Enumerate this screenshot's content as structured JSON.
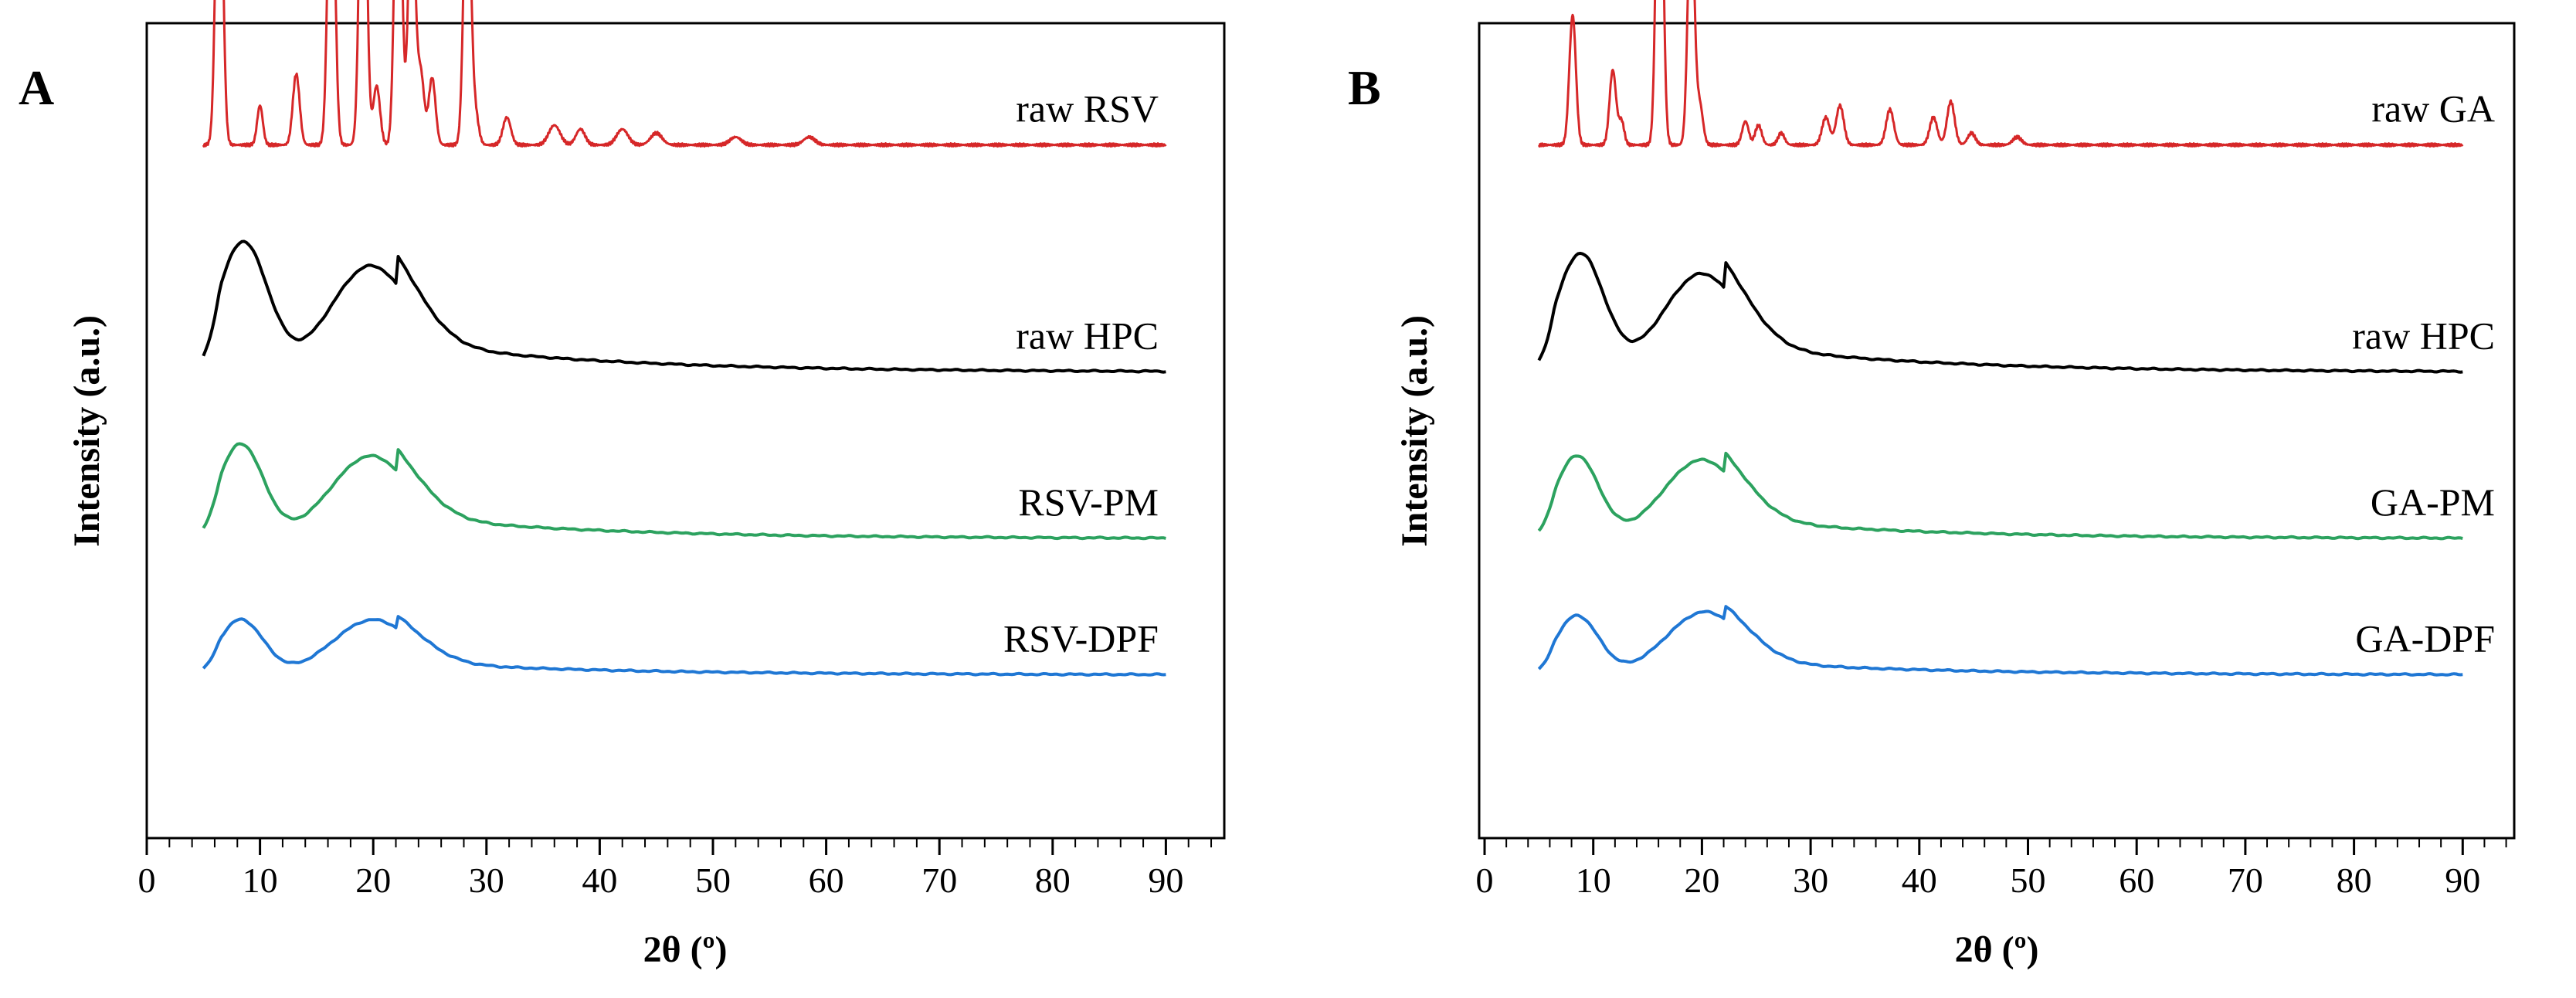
{
  "chart_data": [
    {
      "type": "line",
      "panel_label": "A",
      "xlabel": "2θ (º)",
      "ylabel": "Intensity (a.u.)",
      "xlim": [
        0,
        95
      ],
      "xticks": [
        "0",
        "10",
        "20",
        "30",
        "40",
        "50",
        "60",
        "70",
        "80",
        "90"
      ],
      "y_ticks_shown": false,
      "grid": false,
      "series": [
        {
          "name": "raw RSV",
          "color": "#d62728",
          "baseline": 0.12,
          "end": 0.12,
          "broad": [],
          "peaks": [
            [
              6.4,
              0.92,
              0.3
            ],
            [
              10.0,
              0.1,
              0.25
            ],
            [
              13.2,
              0.18,
              0.3
            ],
            [
              16.3,
              0.88,
              0.3
            ],
            [
              19.1,
              1.0,
              0.3
            ],
            [
              20.3,
              0.15,
              0.3
            ],
            [
              22.2,
              0.92,
              0.3
            ],
            [
              23.4,
              0.67,
              0.3
            ],
            [
              24.2,
              0.18,
              0.3
            ],
            [
              25.2,
              0.17,
              0.3
            ],
            [
              28.3,
              0.77,
              0.3
            ],
            [
              29.0,
              0.08,
              0.3
            ],
            [
              31.8,
              0.07,
              0.35
            ],
            [
              36.0,
              0.05,
              0.5
            ],
            [
              38.3,
              0.04,
              0.4
            ],
            [
              42.0,
              0.04,
              0.5
            ],
            [
              45.0,
              0.03,
              0.5
            ],
            [
              52.0,
              0.02,
              0.5
            ],
            [
              58.5,
              0.02,
              0.5
            ]
          ]
        },
        {
          "name": "raw HPC",
          "color": "#000000",
          "baseline": 0.42,
          "end": 0.42,
          "broad": [
            [
              8.5,
              0.33,
              2.2
            ],
            [
              19.8,
              0.27,
              3.6
            ]
          ],
          "peaks": []
        },
        {
          "name": "RSV-PM",
          "color": "#2ca25f",
          "baseline": 0.64,
          "end": 0.64,
          "broad": [
            [
              8.3,
              0.24,
              2.0
            ],
            [
              19.8,
              0.21,
              3.6
            ]
          ],
          "peaks": []
        },
        {
          "name": "RSV-DPF",
          "color": "#1f77d4",
          "baseline": 0.82,
          "end": 0.82,
          "broad": [
            [
              8.3,
              0.14,
              2.0
            ],
            [
              20.0,
              0.14,
              3.6
            ]
          ],
          "peaks": []
        }
      ]
    },
    {
      "type": "line",
      "panel_label": "B",
      "xlabel": "2θ (º)",
      "ylabel": "Intensity (a.u.)",
      "xlim": [
        0,
        95
      ],
      "xticks": [
        "0",
        "10",
        "20",
        "30",
        "40",
        "50",
        "60",
        "70",
        "80",
        "90"
      ],
      "y_ticks_shown": false,
      "grid": false,
      "series": [
        {
          "name": "raw GA",
          "color": "#d62728",
          "baseline": 0.12,
          "end": 0.12,
          "broad": [],
          "peaks": [
            [
              8.1,
              0.33,
              0.3
            ],
            [
              11.8,
              0.19,
              0.3
            ],
            [
              12.6,
              0.06,
              0.25
            ],
            [
              16.1,
              1.0,
              0.3
            ],
            [
              19.0,
              0.62,
              0.3
            ],
            [
              19.8,
              0.1,
              0.3
            ],
            [
              24.0,
              0.06,
              0.3
            ],
            [
              25.2,
              0.05,
              0.3
            ],
            [
              27.3,
              0.03,
              0.3
            ],
            [
              31.4,
              0.07,
              0.35
            ],
            [
              32.7,
              0.1,
              0.35
            ],
            [
              37.3,
              0.09,
              0.35
            ],
            [
              41.3,
              0.07,
              0.35
            ],
            [
              42.9,
              0.11,
              0.35
            ],
            [
              44.8,
              0.03,
              0.35
            ],
            [
              49.0,
              0.02,
              0.4
            ]
          ]
        },
        {
          "name": "raw HPC",
          "color": "#000000",
          "baseline": 0.42,
          "end": 0.42,
          "broad": [
            [
              8.8,
              0.3,
              2.2
            ],
            [
              20.0,
              0.25,
              3.6
            ]
          ],
          "peaks": []
        },
        {
          "name": "GA-PM",
          "color": "#2ca25f",
          "baseline": 0.64,
          "end": 0.64,
          "broad": [
            [
              8.5,
              0.21,
              2.0
            ],
            [
              20.0,
              0.2,
              3.6
            ]
          ],
          "peaks": []
        },
        {
          "name": "GA-DPF",
          "color": "#1f77d4",
          "baseline": 0.82,
          "end": 0.82,
          "broad": [
            [
              8.5,
              0.15,
              2.0
            ],
            [
              20.3,
              0.16,
              3.6
            ]
          ],
          "peaks": []
        }
      ]
    }
  ]
}
